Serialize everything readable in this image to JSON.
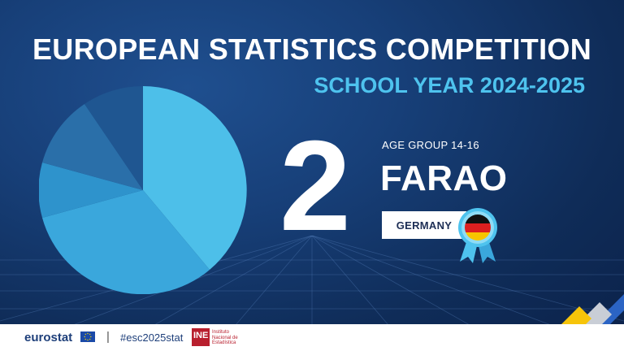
{
  "header": {
    "title": "EUROPEAN STATISTICS COMPETITION",
    "subtitle": "SCHOOL YEAR 2024-2025"
  },
  "award": {
    "rank": "2",
    "age_group": "AGE GROUP 14-16",
    "team_name": "FARAO",
    "country": "GERMANY"
  },
  "footer": {
    "brand": "eurostat",
    "separator": "|",
    "hashtag": "#esc2025stat",
    "institute_letters": "INE",
    "institute_name": "Instituto Nacional de Estadística"
  },
  "colors": {
    "background": "#173f78",
    "accent": "#4ec3ee",
    "footer_bg": "#ffffff",
    "stripe_blue": "#2b64c4",
    "stripe_yellow": "#f6c40a",
    "stripe_gray": "#c9ced6"
  },
  "icons": {
    "pie": "pie-chart-graphic",
    "rosette": "germany-flag-rosette-icon",
    "eu_flag": "eu-flag-icon"
  }
}
